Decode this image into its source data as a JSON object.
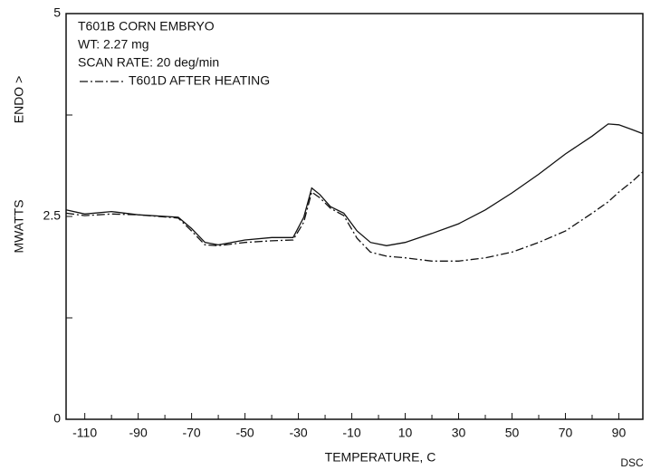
{
  "chart_data": {
    "type": "line",
    "title": "T601B CORN EMBRYO",
    "annotations": [
      "WT: 2.27 mg",
      "SCAN RATE: 20 deg/min"
    ],
    "xlabel": "TEMPERATURE, C",
    "ylabel": "MWATTS",
    "ylabel2": "ENDO >",
    "corner_label": "DSC",
    "x": [
      -117,
      -110,
      -100,
      -90,
      -75,
      -70,
      -65,
      -60,
      -50,
      -40,
      -32,
      -28,
      -25,
      -22,
      -18,
      -13,
      -8,
      -3,
      3,
      10,
      20,
      30,
      40,
      50,
      60,
      70,
      80,
      86,
      90,
      95,
      99
    ],
    "series": [
      {
        "color": "#111111",
        "style": "solid",
        "values": [
          2.58,
          2.53,
          2.56,
          2.52,
          2.49,
          2.35,
          2.18,
          2.15,
          2.21,
          2.24,
          2.24,
          2.49,
          2.85,
          2.77,
          2.62,
          2.54,
          2.32,
          2.18,
          2.14,
          2.18,
          2.29,
          2.41,
          2.58,
          2.79,
          3.02,
          3.27,
          3.49,
          3.64,
          3.63,
          3.57,
          3.52
        ]
      },
      {
        "name": "T601D AFTER HEATING",
        "color": "#111111",
        "style": "dashdot",
        "values": [
          2.54,
          2.51,
          2.53,
          2.52,
          2.48,
          2.32,
          2.15,
          2.14,
          2.18,
          2.2,
          2.21,
          2.43,
          2.8,
          2.73,
          2.6,
          2.51,
          2.23,
          2.06,
          2.01,
          1.99,
          1.95,
          1.95,
          1.99,
          2.06,
          2.18,
          2.32,
          2.54,
          2.68,
          2.8,
          2.93,
          3.05
        ]
      }
    ],
    "xlim": [
      -117,
      99
    ],
    "ylim": [
      0,
      5
    ],
    "xticks": [
      -110,
      -90,
      -70,
      -50,
      -30,
      -10,
      10,
      30,
      50,
      70,
      90
    ],
    "xticks_minor": [
      -100,
      -80,
      -60,
      -40,
      -20,
      0,
      20,
      40,
      60,
      80
    ],
    "yticks": [
      0,
      2.5,
      5
    ],
    "yticks_minor": [
      1.25,
      3.75
    ],
    "grid": false
  }
}
